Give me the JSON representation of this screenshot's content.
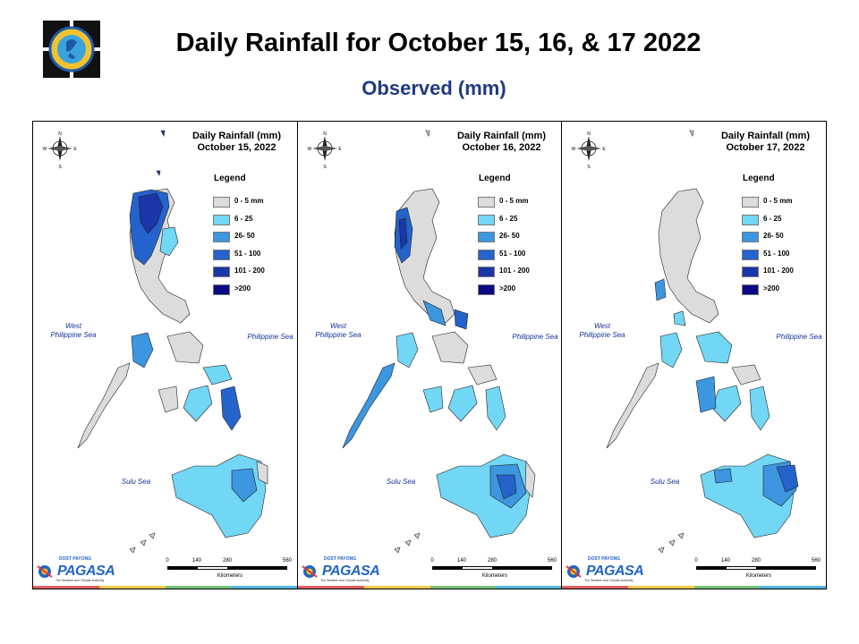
{
  "title": "Daily Rainfall for October 15, 16, & 17 2022",
  "subtitle": "Observed (mm)",
  "legend": {
    "title": "Legend",
    "classes": [
      {
        "label": "0 - 5 mm",
        "color": "#dcdcdc"
      },
      {
        "label": "6 - 25",
        "color": "#72d6f5"
      },
      {
        "label": "26- 50",
        "color": "#3c96e0"
      },
      {
        "label": "51 - 100",
        "color": "#2462cc"
      },
      {
        "label": "101 - 200",
        "color": "#1b36a8"
      },
      {
        "label": ">200",
        "color": "#0a0a84"
      }
    ]
  },
  "panels": [
    {
      "map_title": "Daily Rainfall (mm)",
      "date": "October 15, 2022",
      "classes_shown": [
        "0 - 5 mm",
        "6 - 25",
        "26- 50",
        "51 - 100",
        "101 - 200",
        ">200"
      ]
    },
    {
      "map_title": "Daily Rainfall (mm)",
      "date": "October 16, 2022",
      "classes_shown": [
        "0 - 5 mm",
        "6 - 25",
        "26- 50",
        "51 - 100",
        "101 - 200",
        ">200"
      ]
    },
    {
      "map_title": "Daily Rainfall (mm)",
      "date": "October 17, 2022",
      "classes_shown": [
        "0 - 5 mm",
        "6 - 25",
        "26- 50",
        "51 - 100",
        "101 - 200",
        ">200"
      ]
    }
  ],
  "sea_labels": {
    "west_line1": "West",
    "west_line2": "Philippine Sea",
    "east": "Philippine Sea",
    "sulu": "Sulu Sea"
  },
  "compass": {
    "n": "N",
    "s": "S",
    "e": "E",
    "w": "W"
  },
  "scale": {
    "ticks": [
      "0",
      "140",
      "280",
      "560"
    ],
    "unit": "Kilometers"
  },
  "brand": {
    "name": "PAGASA",
    "small": "DOST PAYONG",
    "tagline": "The Weather and Climate Authority"
  }
}
